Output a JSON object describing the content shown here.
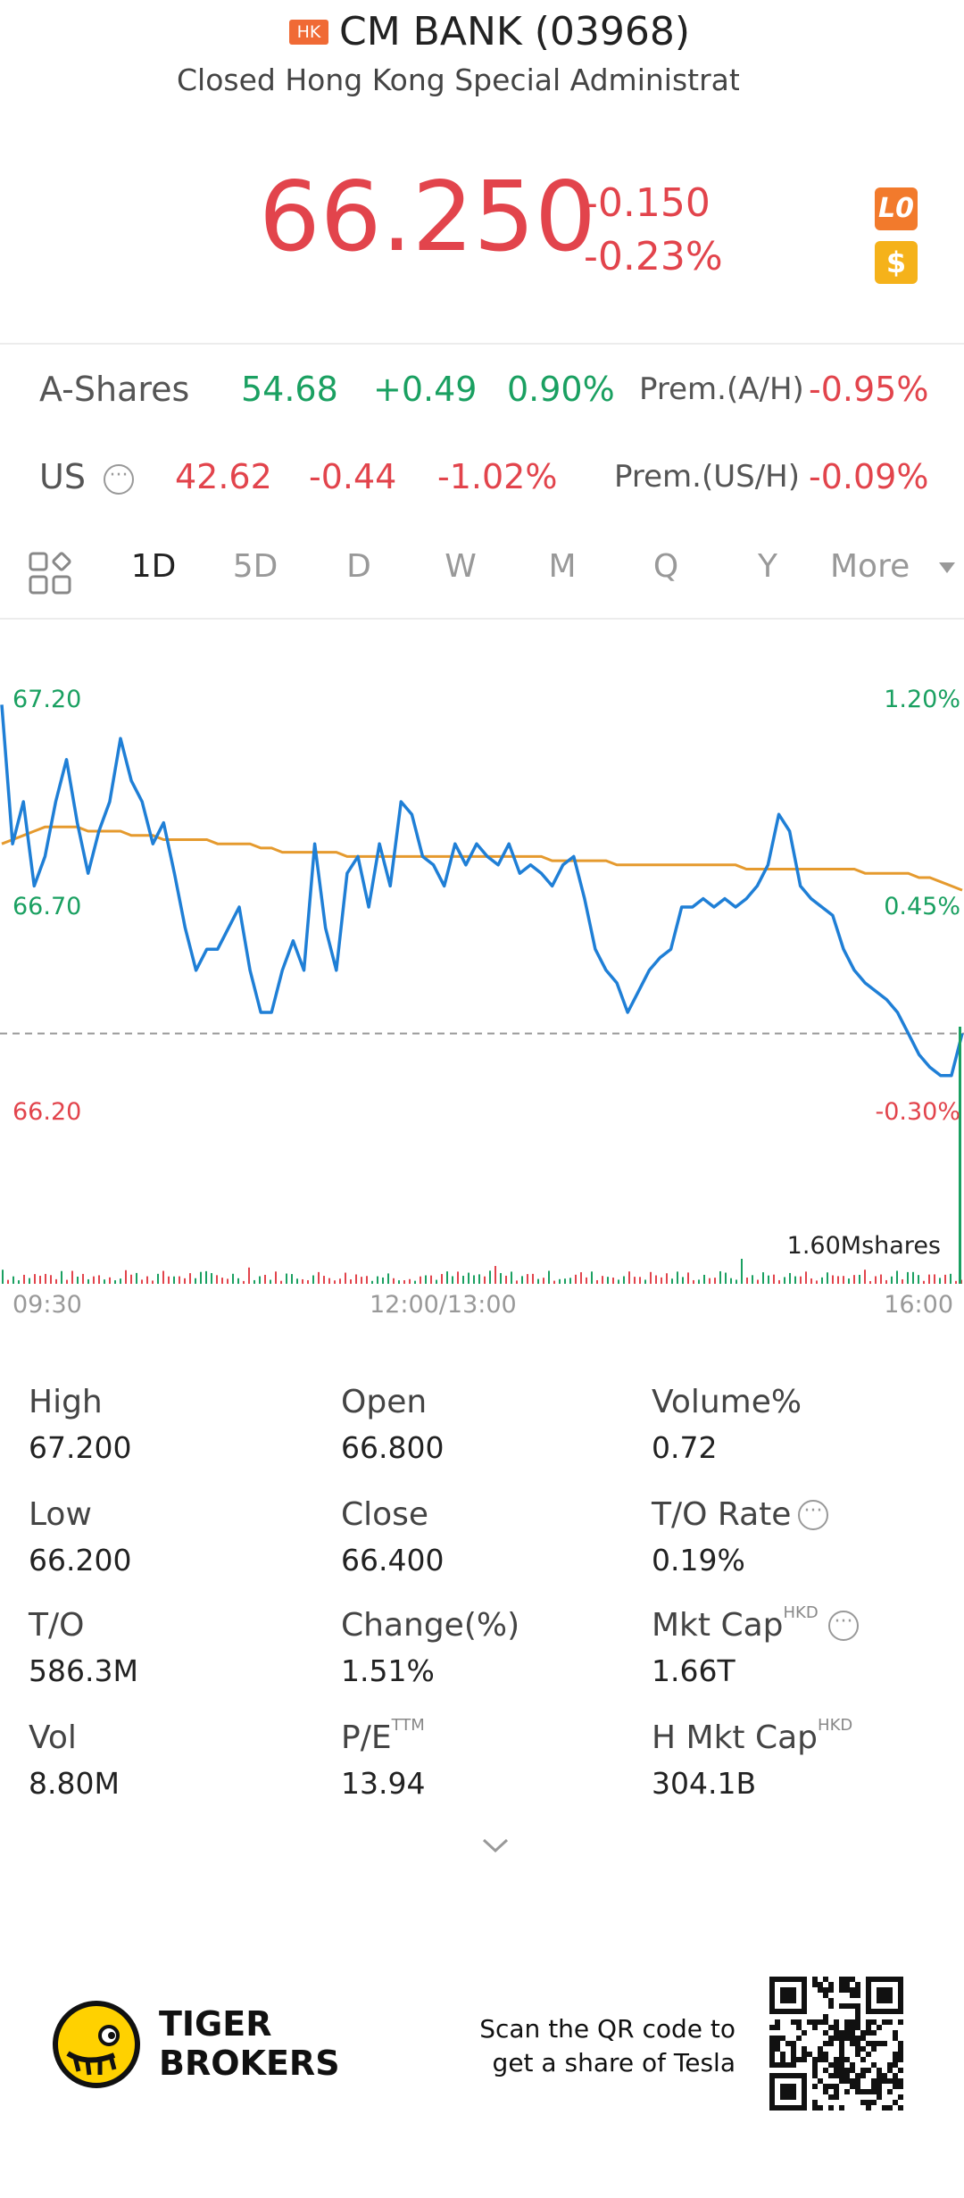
{
  "header": {
    "market_badge": "HK",
    "title": "CM BANK (03968)",
    "status": "Closed Hong Kong Special Administrat",
    "price": "66.250",
    "change": "-0.150",
    "change_pct": "-0.23%",
    "badge_lo": "L0",
    "badge_dollar": "$"
  },
  "a_shares": {
    "label": "A-Shares",
    "price": "54.68",
    "change": "+0.49",
    "change_pct": "0.90%",
    "prem_label": "Prem.(A/H)",
    "prem_value": "-0.95%"
  },
  "us": {
    "label": "US",
    "price": "42.62",
    "change": "-0.44",
    "change_pct": "-1.02%",
    "prem_label": "Prem.(US/H)",
    "prem_value": "-0.09%"
  },
  "period_tabs": [
    "1D",
    "5D",
    "D",
    "W",
    "M",
    "Q",
    "Y",
    "More"
  ],
  "active_tab": "1D",
  "chart_data": {
    "type": "line",
    "y_left_labels": [
      "67.20",
      "66.70",
      "66.20"
    ],
    "y_right_labels": [
      "1.20%",
      "0.45%",
      "-0.30%"
    ],
    "x_labels": [
      "09:30",
      "12:00/13:00",
      "16:00"
    ],
    "volume_label": "1.60Mshares",
    "prev_close": 66.4,
    "ylim": [
      66.2,
      67.2
    ],
    "series": [
      {
        "color": "#1f7fd6",
        "values": [
          67.18,
          66.85,
          66.95,
          66.75,
          66.82,
          66.95,
          67.05,
          66.9,
          66.78,
          66.88,
          66.95,
          67.1,
          67.0,
          66.95,
          66.85,
          66.9,
          66.78,
          66.65,
          66.55,
          66.6,
          66.6,
          66.65,
          66.7,
          66.55,
          66.45,
          66.45,
          66.55,
          66.62,
          66.55,
          66.85,
          66.65,
          66.55,
          66.78,
          66.82,
          66.7,
          66.85,
          66.75,
          66.95,
          66.92,
          66.82,
          66.8,
          66.75,
          66.85,
          66.8,
          66.85,
          66.82,
          66.8,
          66.85,
          66.78,
          66.8,
          66.78,
          66.75,
          66.8,
          66.82,
          66.72,
          66.6,
          66.55,
          66.52,
          66.45,
          66.5,
          66.55,
          66.58,
          66.6,
          66.7,
          66.7,
          66.72,
          66.7,
          66.72,
          66.7,
          66.72,
          66.75,
          66.8,
          66.92,
          66.88,
          66.75,
          66.72,
          66.7,
          66.68,
          66.6,
          66.55,
          66.52,
          66.5,
          66.48,
          66.45,
          66.4,
          66.35,
          66.32,
          66.3,
          66.3,
          66.4
        ]
      },
      {
        "color": "#e59a2e",
        "values": [
          66.85,
          66.86,
          66.87,
          66.88,
          66.89,
          66.89,
          66.89,
          66.89,
          66.88,
          66.88,
          66.88,
          66.88,
          66.87,
          66.87,
          66.87,
          66.86,
          66.86,
          66.86,
          66.86,
          66.86,
          66.85,
          66.85,
          66.85,
          66.85,
          66.84,
          66.84,
          66.83,
          66.83,
          66.83,
          66.83,
          66.83,
          66.83,
          66.82,
          66.82,
          66.82,
          66.82,
          66.82,
          66.82,
          66.82,
          66.82,
          66.82,
          66.82,
          66.82,
          66.82,
          66.82,
          66.82,
          66.82,
          66.82,
          66.82,
          66.82,
          66.82,
          66.81,
          66.81,
          66.81,
          66.81,
          66.81,
          66.81,
          66.8,
          66.8,
          66.8,
          66.8,
          66.8,
          66.8,
          66.8,
          66.8,
          66.8,
          66.8,
          66.8,
          66.8,
          66.79,
          66.79,
          66.79,
          66.79,
          66.79,
          66.79,
          66.79,
          66.79,
          66.79,
          66.79,
          66.79,
          66.78,
          66.78,
          66.78,
          66.78,
          66.78,
          66.77,
          66.77,
          66.76,
          66.75,
          66.74
        ]
      }
    ]
  },
  "stats": [
    {
      "label": "High",
      "value": "67.200"
    },
    {
      "label": "Open",
      "value": "66.800"
    },
    {
      "label": "Volume%",
      "value": "0.72"
    },
    {
      "label": "Low",
      "value": "66.200"
    },
    {
      "label": "Close",
      "value": "66.400"
    },
    {
      "label": "T/O Rate",
      "value": "0.19%"
    },
    {
      "label": "T/O",
      "value": "586.3M"
    },
    {
      "label": "Change(%)",
      "value": "1.51%"
    },
    {
      "label": "Mkt Cap",
      "sup": "HKD",
      "value": "1.66T"
    },
    {
      "label": "Vol",
      "value": "8.80M"
    },
    {
      "label": "P/E",
      "sup": "TTM",
      "value": "13.94"
    },
    {
      "label": "H Mkt Cap",
      "sup": "HKD",
      "value": "304.1B"
    }
  ],
  "footer": {
    "brand_line1": "TIGER",
    "brand_line2": "BROKERS",
    "scan_line1": "Scan the QR code to",
    "scan_line2": "get a share of Tesla"
  },
  "colors": {
    "up": "#1aa061",
    "down": "#e2444c",
    "price_line": "#1f7fd6",
    "avg_line": "#e59a2e"
  },
  "icons": [
    "grid-layout-icon",
    "more-dots-icon",
    "chevron-down-icon",
    "tiger-logo-icon",
    "qr-code-icon"
  ]
}
